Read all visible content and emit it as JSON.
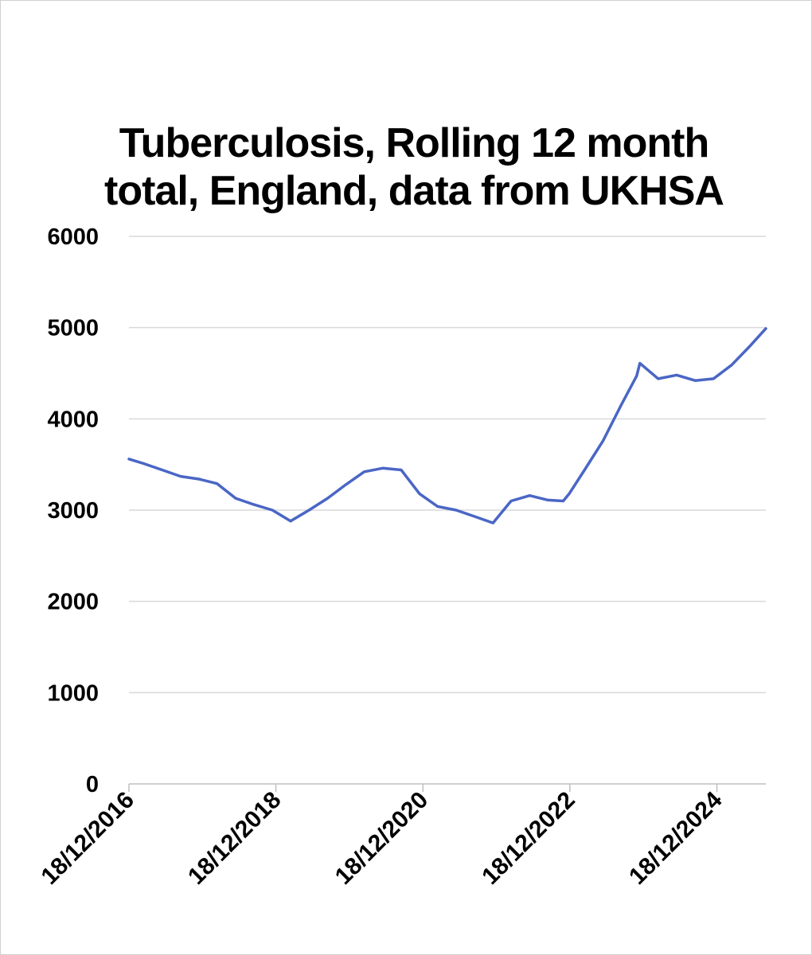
{
  "chart_data": {
    "type": "line",
    "title": "Tuberculosis, Rolling 12 month total, England, data from UKHSA",
    "xlabel": "",
    "ylabel": "",
    "ylim": [
      0,
      6000
    ],
    "yticks": [
      "0",
      "1000",
      "2000",
      "3000",
      "4000",
      "5000",
      "6000"
    ],
    "xticks": [
      "18/12/2016",
      "18/12/2018",
      "18/12/2020",
      "18/12/2022",
      "18/12/2024"
    ],
    "xrange": [
      "2016-12-18",
      "2025-08-18"
    ],
    "grid": true,
    "legend": "none",
    "series": [
      {
        "color": "#4a66c5",
        "x": [
          "2016-12-18",
          "2017-03-01",
          "2017-06-01",
          "2017-09-01",
          "2017-12-01",
          "2018-03-01",
          "2018-06-01",
          "2018-09-01",
          "2018-12-01",
          "2019-03-01",
          "2019-06-01",
          "2019-09-01",
          "2019-12-01",
          "2020-03-01",
          "2020-06-01",
          "2020-09-01",
          "2020-12-01",
          "2021-03-01",
          "2021-06-01",
          "2021-09-01",
          "2021-12-01",
          "2022-03-01",
          "2022-06-01",
          "2022-09-01",
          "2022-11-15",
          "2022-12-15",
          "2023-03-01",
          "2023-06-01",
          "2023-09-01",
          "2023-11-15",
          "2023-12-01",
          "2024-03-01",
          "2024-06-01",
          "2024-09-01",
          "2024-12-01",
          "2025-03-01",
          "2025-06-01",
          "2025-08-18"
        ],
        "y": [
          3560,
          3510,
          3440,
          3370,
          3340,
          3290,
          3130,
          3060,
          3000,
          2880,
          3000,
          3130,
          3280,
          3420,
          3460,
          3440,
          3180,
          3040,
          3000,
          2930,
          2860,
          3100,
          3160,
          3110,
          3100,
          3180,
          3440,
          3760,
          4160,
          4470,
          4610,
          4440,
          4480,
          4420,
          4440,
          4590,
          4800,
          4990
        ]
      }
    ]
  }
}
